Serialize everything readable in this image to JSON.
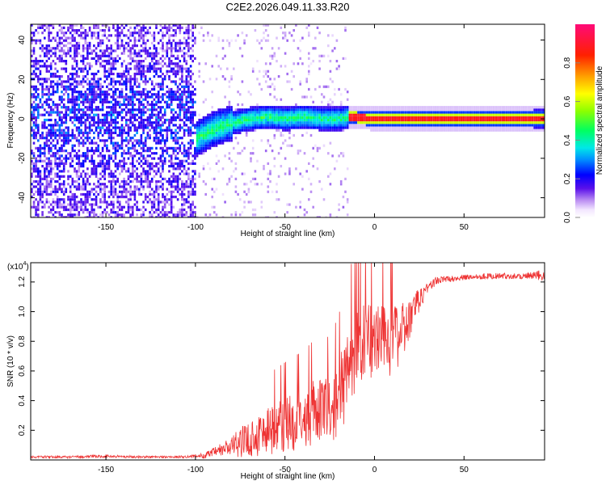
{
  "title": "C2E2.2026.049.11.33.R20",
  "chart_data": [
    {
      "type": "heatmap",
      "xlabel": "Height of straight line (km)",
      "ylabel": "Frequency (Hz)",
      "xlim": [
        -192,
        95
      ],
      "ylim": [
        -50,
        48
      ],
      "xticks": [
        -150,
        -100,
        -50,
        0,
        50
      ],
      "yticks": [
        -40,
        -20,
        0,
        20,
        40
      ],
      "xtick_labels": [
        "-150",
        "-100",
        "-50",
        "0",
        "50"
      ],
      "ytick_labels": [
        "-40",
        "-20",
        "0",
        "20",
        "40"
      ],
      "colorbar": {
        "label": "Normalized spectral amplitude",
        "range": [
          0,
          1
        ],
        "ticks": [
          0.0,
          0.2,
          0.4,
          0.6,
          0.8
        ],
        "tick_labels": [
          "0.0",
          "0.2",
          "0.4",
          "0.6",
          "0.8"
        ]
      },
      "ridge": {
        "description": "spectral ridge frequency vs height",
        "x": [
          -100,
          -90,
          -80,
          -70,
          -60,
          -50,
          -40,
          -30,
          -20,
          -15,
          0,
          5,
          10,
          50,
          93
        ],
        "y": [
          -10,
          -5,
          -2,
          0,
          1,
          0,
          1,
          0,
          0,
          1,
          0,
          0,
          0,
          0,
          0
        ]
      }
    },
    {
      "type": "line",
      "xlabel": "Height of straight line (km)",
      "ylabel": "SNR (10 * v/v)",
      "y_scale_label": "(x10",
      "y_scale_exp": "4",
      "xlim": [
        -192,
        95
      ],
      "ylim": [
        0,
        1.33
      ],
      "xticks": [
        -150,
        -100,
        -50,
        0,
        50
      ],
      "yticks": [
        0.2,
        0.4,
        0.6,
        0.8,
        1.0,
        1.2
      ],
      "xtick_labels": [
        "-150",
        "-100",
        "-50",
        "0",
        "50"
      ],
      "ytick_labels": [
        "0.2",
        "0.4",
        "0.6",
        "0.8",
        "1.0",
        "1.2"
      ],
      "color": "#ee3333",
      "series": [
        {
          "name": "SNR",
          "x": [
            -192,
            -170,
            -150,
            -130,
            -110,
            -100,
            -95,
            -90,
            -85,
            -80,
            -75,
            -70,
            -65,
            -60,
            -55,
            -50,
            -45,
            -40,
            -35,
            -30,
            -25,
            -20,
            -15,
            -10,
            -5,
            0,
            5,
            10,
            15,
            20,
            25,
            30,
            35,
            40,
            50,
            60,
            70,
            80,
            90,
            95
          ],
          "mean": [
            0.02,
            0.02,
            0.025,
            0.02,
            0.02,
            0.025,
            0.03,
            0.05,
            0.07,
            0.09,
            0.12,
            0.14,
            0.17,
            0.2,
            0.22,
            0.24,
            0.26,
            0.29,
            0.31,
            0.33,
            0.35,
            0.4,
            0.6,
            0.75,
            0.8,
            0.8,
            0.85,
            0.8,
            0.85,
            0.95,
            1.08,
            1.17,
            1.21,
            1.22,
            1.23,
            1.24,
            1.24,
            1.24,
            1.24,
            1.25
          ],
          "spread": [
            0.008,
            0.008,
            0.01,
            0.008,
            0.008,
            0.01,
            0.02,
            0.03,
            0.05,
            0.07,
            0.1,
            0.12,
            0.15,
            0.17,
            0.18,
            0.19,
            0.2,
            0.2,
            0.22,
            0.22,
            0.22,
            0.26,
            0.3,
            0.3,
            0.28,
            0.26,
            0.25,
            0.25,
            0.2,
            0.15,
            0.08,
            0.04,
            0.03,
            0.02,
            0.02,
            0.02,
            0.02,
            0.02,
            0.03,
            0.05
          ]
        }
      ]
    }
  ]
}
